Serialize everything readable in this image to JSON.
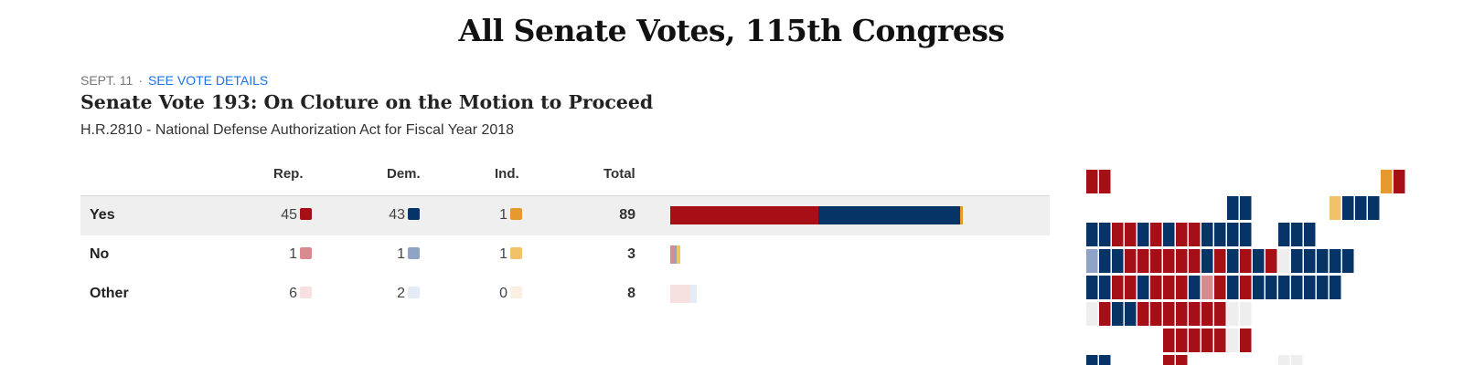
{
  "page": {
    "title": "All Senate Votes, 115th Congress"
  },
  "vote": {
    "date": "SEPT. 11",
    "separator": "·",
    "details_link": "SEE VOTE DETAILS",
    "title": "Senate Vote 193: On Cloture on the Motion to Proceed",
    "bill": "H.R.2810 - National Defense Authorization Act for Fiscal Year 2018"
  },
  "table": {
    "headers": {
      "rep": "Rep.",
      "dem": "Dem.",
      "ind": "Ind.",
      "total": "Total"
    },
    "rows": [
      {
        "label": "Yes",
        "rep": "45",
        "dem": "43",
        "ind": "1",
        "total": "89"
      },
      {
        "label": "No",
        "rep": "1",
        "dem": "1",
        "ind": "1",
        "total": "3"
      },
      {
        "label": "Other",
        "rep": "6",
        "dem": "2",
        "ind": "0",
        "total": "8"
      }
    ]
  },
  "colors": {
    "rep_yes": "#a50f15",
    "dem_yes": "#063466",
    "ind_yes": "#e69a2e",
    "rep_no": "#d98a8e",
    "dem_no": "#8ea3c6",
    "ind_no": "#f0c26a",
    "rep_other": "#f7e0e0",
    "dem_other": "#e3ebf6",
    "ind_other": "#fbefe2",
    "empty": "#eeeeee"
  },
  "chart_data": {
    "type": "bar",
    "orientation": "horizontal-stacked",
    "categories": [
      "Yes",
      "No",
      "Other"
    ],
    "series": [
      {
        "name": "Rep.",
        "values": [
          45,
          1,
          6
        ]
      },
      {
        "name": "Dem.",
        "values": [
          43,
          1,
          2
        ]
      },
      {
        "name": "Ind.",
        "values": [
          1,
          1,
          0
        ]
      }
    ],
    "xlim": [
      0,
      100
    ],
    "title": "",
    "xlabel": "",
    "ylabel": ""
  }
}
